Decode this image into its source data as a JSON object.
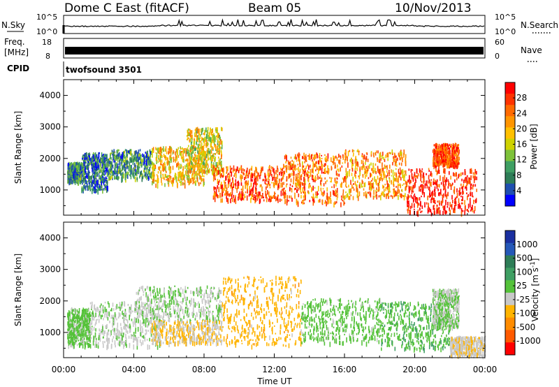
{
  "header": {
    "station": "Dome C East (fitACF)",
    "beam": "Beam 05",
    "date": "10/Nov/2013"
  },
  "strips": {
    "nsky": {
      "label": "N.Sky",
      "ticks": [
        "10^5",
        "10^0"
      ]
    },
    "nsearch": {
      "label": "N.Search",
      "ticks": [
        "10^5",
        "10^0"
      ]
    },
    "freq": {
      "label_line1": "Freq.",
      "label_line2": "[MHz]",
      "ticks": [
        "18",
        "8"
      ]
    },
    "nave": {
      "label": "Nave",
      "ticks": [
        "60",
        "0"
      ]
    },
    "cpid": {
      "label": "CPID",
      "value": "twofsound 3501"
    }
  },
  "panels": {
    "power": {
      "ylabel": "Slant Range [km]",
      "yticks": [
        "4000",
        "3000",
        "2000",
        "1000"
      ],
      "colorbar_label": "Power [dB]",
      "colorbar_ticks": [
        "28",
        "24",
        "20",
        "16",
        "12",
        "8",
        "4"
      ],
      "colorbar_colors": [
        "#ff0000",
        "#ff3300",
        "#ff6a00",
        "#ff9500",
        "#ffc000",
        "#cfd200",
        "#7ec23a",
        "#3f9f63",
        "#2e7d57",
        "#1f4fb0",
        "#0000ff"
      ]
    },
    "velocity": {
      "ylabel": "Slant Range [km]",
      "yticks": [
        "4000",
        "3000",
        "2000",
        "1000"
      ],
      "colorbar_label": "Velocity [m s",
      "colorbar_label_sup": "-1",
      "colorbar_label_end": "]",
      "colorbar_ticks": [
        "1000",
        "500",
        "100",
        "25",
        "-25",
        "-100",
        "-500",
        "-1000"
      ],
      "colorbar_colors": [
        "#1a2fa0",
        "#2558b8",
        "#2e7d57",
        "#3f9f63",
        "#55c23a",
        "#c8c8c8",
        "#ffb400",
        "#ff8c00",
        "#ff5a00",
        "#ff0000"
      ]
    }
  },
  "xaxis": {
    "label": "Time UT",
    "ticks": [
      "00:00",
      "04:00",
      "08:00",
      "12:00",
      "16:00",
      "20:00",
      "00:00"
    ]
  },
  "chart_data": {
    "type": "heatmap",
    "title": "Dome C East (fitACF)",
    "subtitle": "Beam 05",
    "date": "10/Nov/2013",
    "xlabel": "Time UT",
    "x_range_hours": [
      0,
      24
    ],
    "ylabel": "Slant Range [km]",
    "ylim": [
      200,
      4500
    ],
    "panels": [
      {
        "name": "Power [dB]",
        "colorbar_range": [
          3,
          31
        ],
        "series": [
          {
            "time_h": [
              0.2,
              1.0
            ],
            "range_km": [
              1300,
              1900
            ],
            "value": 10
          },
          {
            "time_h": [
              1.0,
              2.5
            ],
            "range_km": [
              1000,
              2200
            ],
            "value": 9
          },
          {
            "time_h": [
              2.5,
              5.0
            ],
            "range_km": [
              1400,
              2300
            ],
            "value": 11
          },
          {
            "time_h": [
              5.0,
              8.0
            ],
            "range_km": [
              1200,
              2400
            ],
            "value": 20
          },
          {
            "time_h": [
              7.0,
              9.0
            ],
            "range_km": [
              1600,
              3000
            ],
            "value": 18
          },
          {
            "time_h": [
              8.5,
              12.5
            ],
            "range_km": [
              700,
              1800
            ],
            "value": 26
          },
          {
            "time_h": [
              12.5,
              16.0
            ],
            "range_km": [
              600,
              2200
            ],
            "value": 24
          },
          {
            "time_h": [
              16.0,
              19.5
            ],
            "range_km": [
              800,
              2300
            ],
            "value": 22
          },
          {
            "time_h": [
              19.5,
              23.5
            ],
            "range_km": [
              300,
              1700
            ],
            "value": 29
          },
          {
            "time_h": [
              21.0,
              22.5
            ],
            "range_km": [
              1800,
              2500
            ],
            "value": 27
          }
        ]
      },
      {
        "name": "Velocity [m s-1]",
        "colorbar_range": [
          -1000,
          1000
        ],
        "series": [
          {
            "time_h": [
              0.2,
              1.5
            ],
            "range_km": [
              600,
              1800
            ],
            "value": 60
          },
          {
            "time_h": [
              1.5,
              5.5
            ],
            "range_km": [
              600,
              2000
            ],
            "value": -50
          },
          {
            "time_h": [
              4.0,
              9.0
            ],
            "range_km": [
              1400,
              2500
            ],
            "value": 0
          },
          {
            "time_h": [
              5.0,
              9.0
            ],
            "range_km": [
              700,
              1400
            ],
            "value": -200
          },
          {
            "time_h": [
              9.0,
              13.5
            ],
            "range_km": [
              600,
              2800
            ],
            "value": -300
          },
          {
            "time_h": [
              13.5,
              18.0
            ],
            "range_km": [
              700,
              2100
            ],
            "value": 80
          },
          {
            "time_h": [
              18.0,
              22.0
            ],
            "range_km": [
              500,
              2000
            ],
            "value": 150
          },
          {
            "time_h": [
              21.0,
              22.5
            ],
            "range_km": [
              1200,
              2400
            ],
            "value": 0
          },
          {
            "time_h": [
              22.0,
              24.0
            ],
            "range_km": [
              300,
              900
            ],
            "value": -150
          }
        ]
      }
    ]
  }
}
